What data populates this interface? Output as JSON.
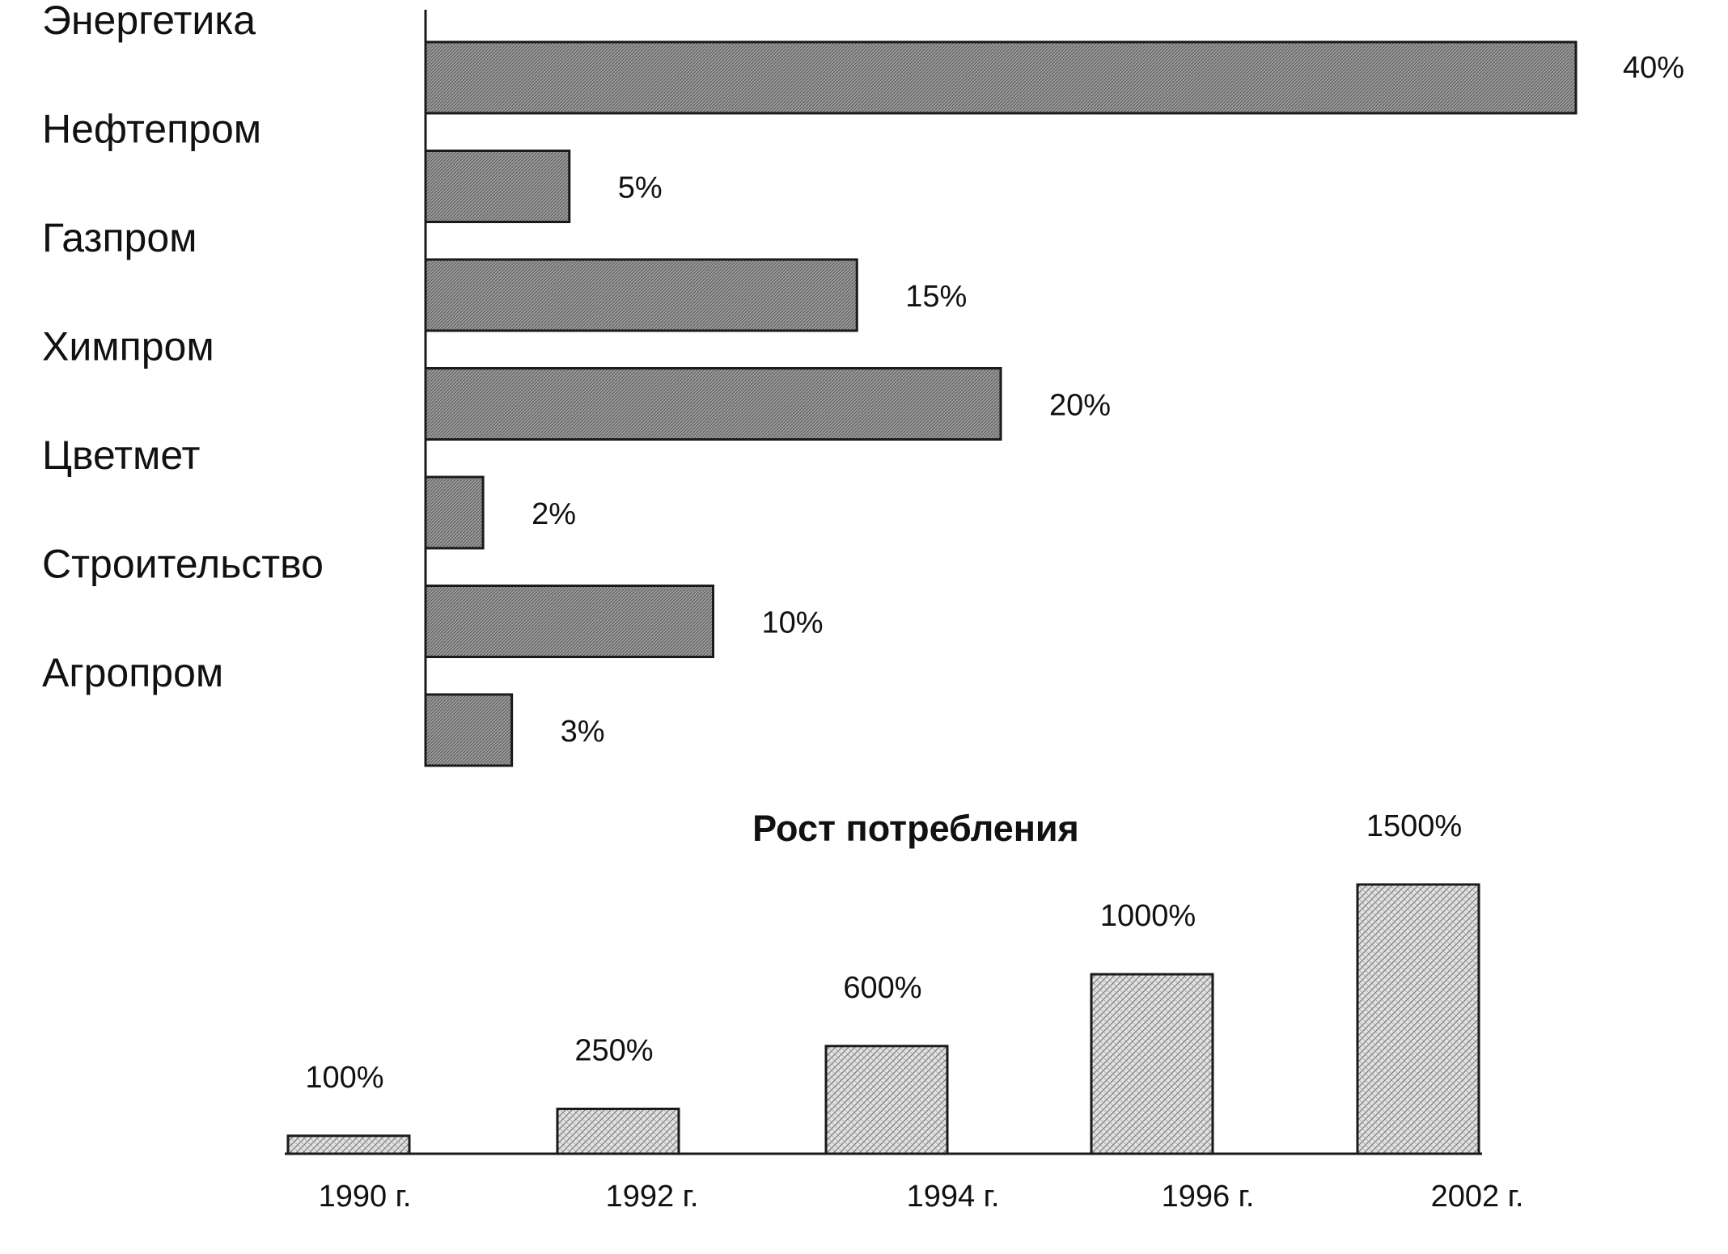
{
  "colors": {
    "ink": "#111111",
    "bar_fill_dense": "#8a8a8a",
    "bar_fill_light": "#cfcfcf",
    "background": "#ffffff"
  },
  "chart_data": [
    {
      "type": "bar",
      "orientation": "horizontal",
      "title": "",
      "categories": [
        "Энергетика",
        "Нефтепром",
        "Газпром",
        "Химпром",
        "Цветмет",
        "Строительство",
        "Агропром"
      ],
      "values": [
        40,
        5,
        15,
        20,
        2,
        10,
        3
      ],
      "value_labels": [
        "40%",
        "5%",
        "15%",
        "20%",
        "2%",
        "10%",
        "3%"
      ],
      "unit": "%",
      "xlim": [
        0,
        40
      ],
      "grid": false,
      "legend": "none"
    },
    {
      "type": "bar",
      "orientation": "vertical",
      "title": "Рост потребления",
      "categories": [
        "1990 г.",
        "1992 г.",
        "1994 г.",
        "1996 г.",
        "2002 г."
      ],
      "values": [
        100,
        250,
        600,
        1000,
        1500
      ],
      "value_labels": [
        "100%",
        "250%",
        "600%",
        "1000%",
        "1500%"
      ],
      "unit": "%",
      "ylim": [
        0,
        1500
      ],
      "grid": false,
      "legend": "none"
    }
  ]
}
